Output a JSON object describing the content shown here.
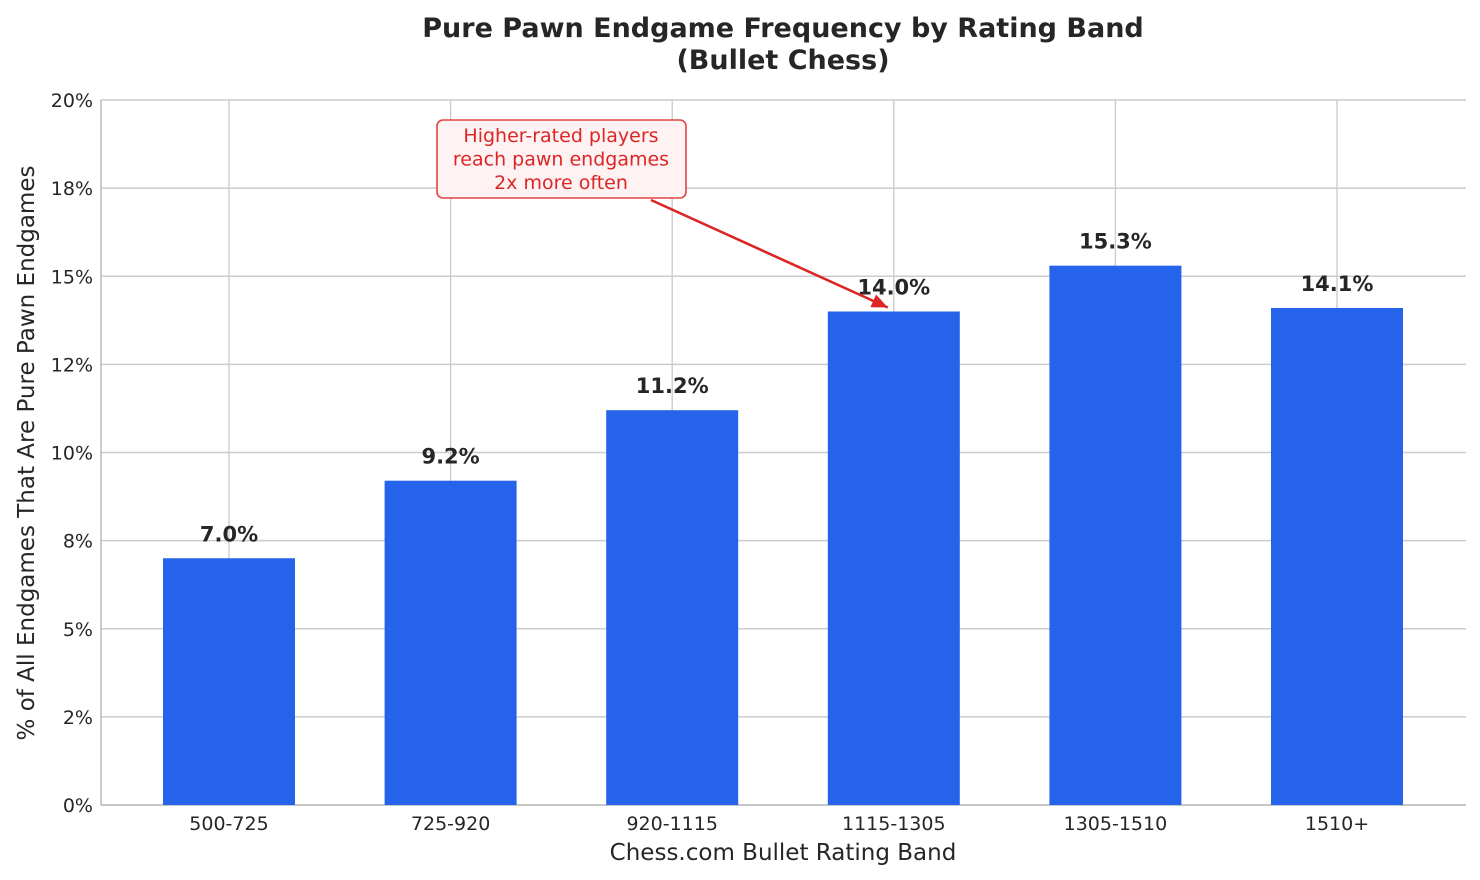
{
  "chart_data": {
    "type": "bar",
    "title": "Pure Pawn Endgame Frequency by Rating Band\n(Bullet Chess)",
    "xlabel": "Chess.com Bullet Rating Band",
    "ylabel": "% of All Endgames That Are Pure Pawn Endgames",
    "categories": [
      "500-725",
      "725-920",
      "920-1115",
      "1115-1305",
      "1305-1510",
      "1510+"
    ],
    "values": [
      7.0,
      9.2,
      11.2,
      14.0,
      15.3,
      14.1
    ],
    "value_labels": [
      "7.0%",
      "9.2%",
      "11.2%",
      "14.0%",
      "15.3%",
      "14.1%"
    ],
    "ylim": [
      0,
      20
    ],
    "yticks": [
      0,
      2.5,
      5,
      7.5,
      10,
      12.5,
      15,
      17.5,
      20
    ],
    "ytick_labels": [
      "0%",
      "2%",
      "5%",
      "8%",
      "10%",
      "12%",
      "15%",
      "18%",
      "20%"
    ],
    "grid": true,
    "bar_color": "#2563eb",
    "annotation": {
      "text": "Higher-rated players\nreach pawn endgames\n2x more often",
      "target_category": "1115-1305",
      "color": "#dc2626",
      "box_fill": "#fef2f2"
    }
  }
}
